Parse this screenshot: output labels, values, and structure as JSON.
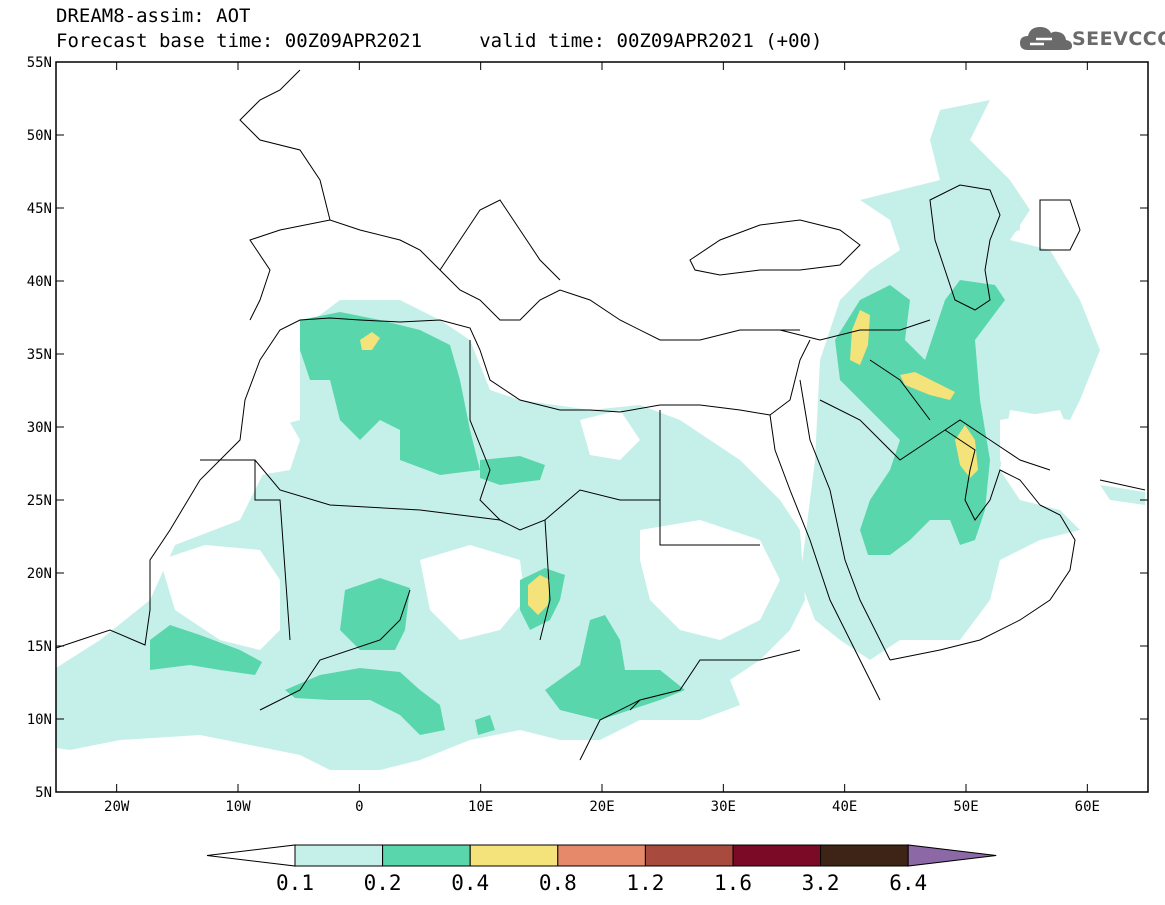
{
  "title": {
    "line1": "DREAM8-assim: AOT",
    "line2": "Forecast base time: 00Z09APR2021     valid time: 00Z09APR2021 (+00)"
  },
  "logo": {
    "text": "SEEVCCC"
  },
  "map": {
    "lon_range": [
      -25,
      65
    ],
    "lat_range": [
      5,
      55
    ],
    "lat_ticks": [
      "5N",
      "10N",
      "15N",
      "20N",
      "25N",
      "30N",
      "35N",
      "40N",
      "45N",
      "50N",
      "55N"
    ],
    "lon_ticks": [
      "20W",
      "10W",
      "0",
      "10E",
      "20E",
      "30E",
      "40E",
      "50E",
      "60E"
    ]
  },
  "colorbar": {
    "labels": [
      "0.1",
      "0.2",
      "0.4",
      "0.8",
      "1.2",
      "1.6",
      "3.2",
      "6.4"
    ],
    "colors": [
      "#ffffff",
      "#c5f0ea",
      "#5ad6ac",
      "#f4e37a",
      "#e5896a",
      "#a84a3e",
      "#7a0a26",
      "#3e2416",
      "#8c68a6"
    ]
  }
}
